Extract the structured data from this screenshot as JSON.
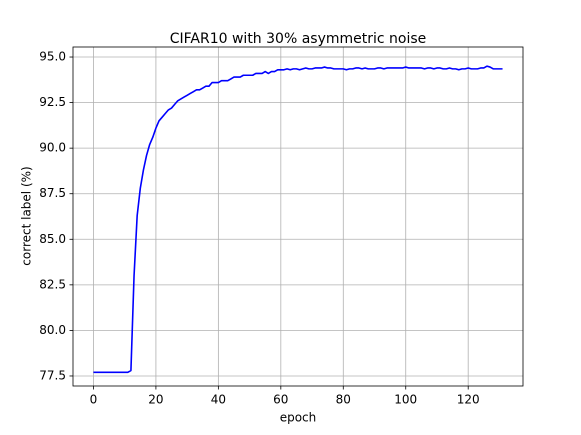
{
  "chart_data": {
    "type": "line",
    "title": "CIFAR10 with 30% asymmetric noise",
    "x_label": "epoch",
    "y_label": "correct label (%)",
    "x": [
      0,
      1,
      2,
      3,
      4,
      5,
      6,
      7,
      8,
      9,
      10,
      11,
      12,
      13,
      14,
      15,
      16,
      17,
      18,
      19,
      20,
      21,
      22,
      23,
      24,
      25,
      26,
      27,
      28,
      29,
      30,
      31,
      32,
      33,
      34,
      35,
      36,
      37,
      38,
      39,
      40,
      41,
      42,
      43,
      44,
      45,
      46,
      47,
      48,
      49,
      50,
      51,
      52,
      53,
      54,
      55,
      56,
      57,
      58,
      59,
      60,
      61,
      62,
      63,
      64,
      65,
      66,
      67,
      68,
      69,
      70,
      71,
      72,
      73,
      74,
      75,
      76,
      77,
      78,
      79,
      80,
      81,
      82,
      83,
      84,
      85,
      86,
      87,
      88,
      89,
      90,
      91,
      92,
      93,
      94,
      95,
      96,
      97,
      98,
      99,
      100,
      101,
      102,
      103,
      104,
      105,
      106,
      107,
      108,
      109,
      110,
      111,
      112,
      113,
      114,
      115,
      116,
      117,
      118,
      119,
      120,
      121,
      122,
      123,
      124,
      125,
      126,
      127,
      128,
      129,
      130,
      131
    ],
    "values": [
      77.7,
      77.7,
      77.7,
      77.7,
      77.7,
      77.7,
      77.7,
      77.7,
      77.7,
      77.7,
      77.7,
      77.7,
      77.8,
      83,
      86.3,
      87.8,
      88.8,
      89.6,
      90.2,
      90.6,
      91.1,
      91.5,
      91.7,
      91.9,
      92.1,
      92.2,
      92.4,
      92.6,
      92.7,
      92.8,
      92.9,
      93.0,
      93.1,
      93.2,
      93.2,
      93.3,
      93.4,
      93.4,
      93.6,
      93.6,
      93.6,
      93.7,
      93.7,
      93.7,
      93.8,
      93.9,
      93.9,
      93.9,
      94.0,
      94.0,
      94.0,
      94.0,
      94.1,
      94.1,
      94.1,
      94.2,
      94.1,
      94.2,
      94.2,
      94.3,
      94.3,
      94.3,
      94.35,
      94.3,
      94.35,
      94.35,
      94.3,
      94.35,
      94.4,
      94.35,
      94.35,
      94.4,
      94.4,
      94.4,
      94.45,
      94.4,
      94.4,
      94.35,
      94.35,
      94.35,
      94.35,
      94.3,
      94.35,
      94.35,
      94.4,
      94.4,
      94.35,
      94.4,
      94.35,
      94.35,
      94.35,
      94.4,
      94.4,
      94.35,
      94.4,
      94.4,
      94.4,
      94.4,
      94.4,
      94.4,
      94.45,
      94.4,
      94.4,
      94.4,
      94.4,
      94.4,
      94.35,
      94.4,
      94.4,
      94.35,
      94.4,
      94.4,
      94.35,
      94.35,
      94.4,
      94.35,
      94.35,
      94.3,
      94.35,
      94.35,
      94.4,
      94.35,
      94.35,
      94.35,
      94.4,
      94.4,
      94.5,
      94.45,
      94.35,
      94.35,
      94.35,
      94.35
    ],
    "color": "#0000ff",
    "xlim": [
      -6.55,
      137.55
    ],
    "xticks": [
      0,
      20,
      40,
      60,
      80,
      100,
      120
    ],
    "ylim": [
      76.95,
      95.55
    ],
    "yticks": [
      {
        "value": 77.5,
        "label": "77.5"
      },
      {
        "value": 80,
        "label": "80.0"
      },
      {
        "value": 82.5,
        "label": "82.5"
      },
      {
        "value": 85,
        "label": "85.0"
      },
      {
        "value": 87.5,
        "label": "87.5"
      },
      {
        "value": 90,
        "label": "90.0"
      },
      {
        "value": 92.5,
        "label": "92.5"
      },
      {
        "value": 95,
        "label": "95.0"
      }
    ],
    "grid": true
  }
}
